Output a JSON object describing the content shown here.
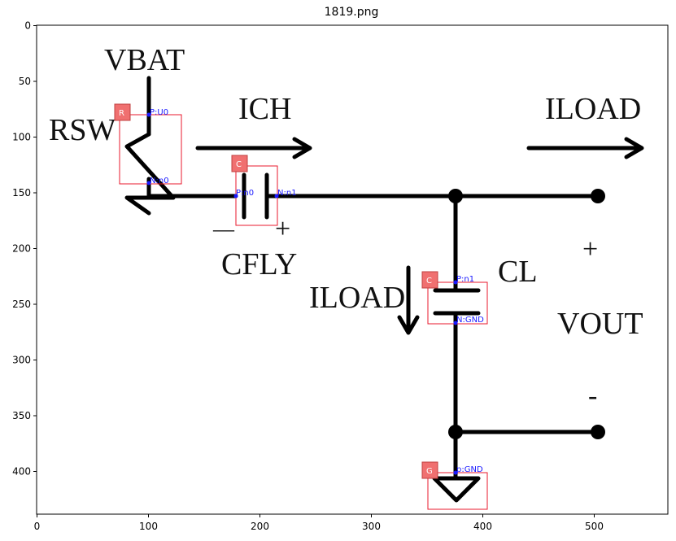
{
  "title": "1819.png",
  "axes": {
    "x_ticks": [
      "0",
      "100",
      "200",
      "300",
      "400",
      "500"
    ],
    "y_ticks": [
      "0",
      "50",
      "100",
      "150",
      "200",
      "250",
      "300",
      "350",
      "400"
    ]
  },
  "circuit": {
    "labels": {
      "vbat": "VBAT",
      "rsw": "RSW",
      "ich": "ICH",
      "iload_top": "ILOAD",
      "cfly": "CFLY",
      "cl": "CL",
      "iload_mid": "ILOAD",
      "vout": "VOUT",
      "plus_out": "+",
      "minus_out": "-",
      "cfly_minus": "—",
      "cfly_plus": "+"
    }
  },
  "annotations": {
    "resistor": {
      "tag": "R",
      "pin_top": "P:U0",
      "pin_bottom": "N:n0"
    },
    "cfly": {
      "tag": "C",
      "pin_left": "P:n0",
      "pin_right": "N:n1"
    },
    "cl": {
      "tag": "C",
      "pin_top": "P:n1",
      "pin_bottom": "N:GND"
    },
    "ground": {
      "tag": "G",
      "pin": "p:GND"
    }
  },
  "colors": {
    "box": "#e8192c",
    "tag_fill": "#f07070",
    "pin": "#1a1aff"
  }
}
